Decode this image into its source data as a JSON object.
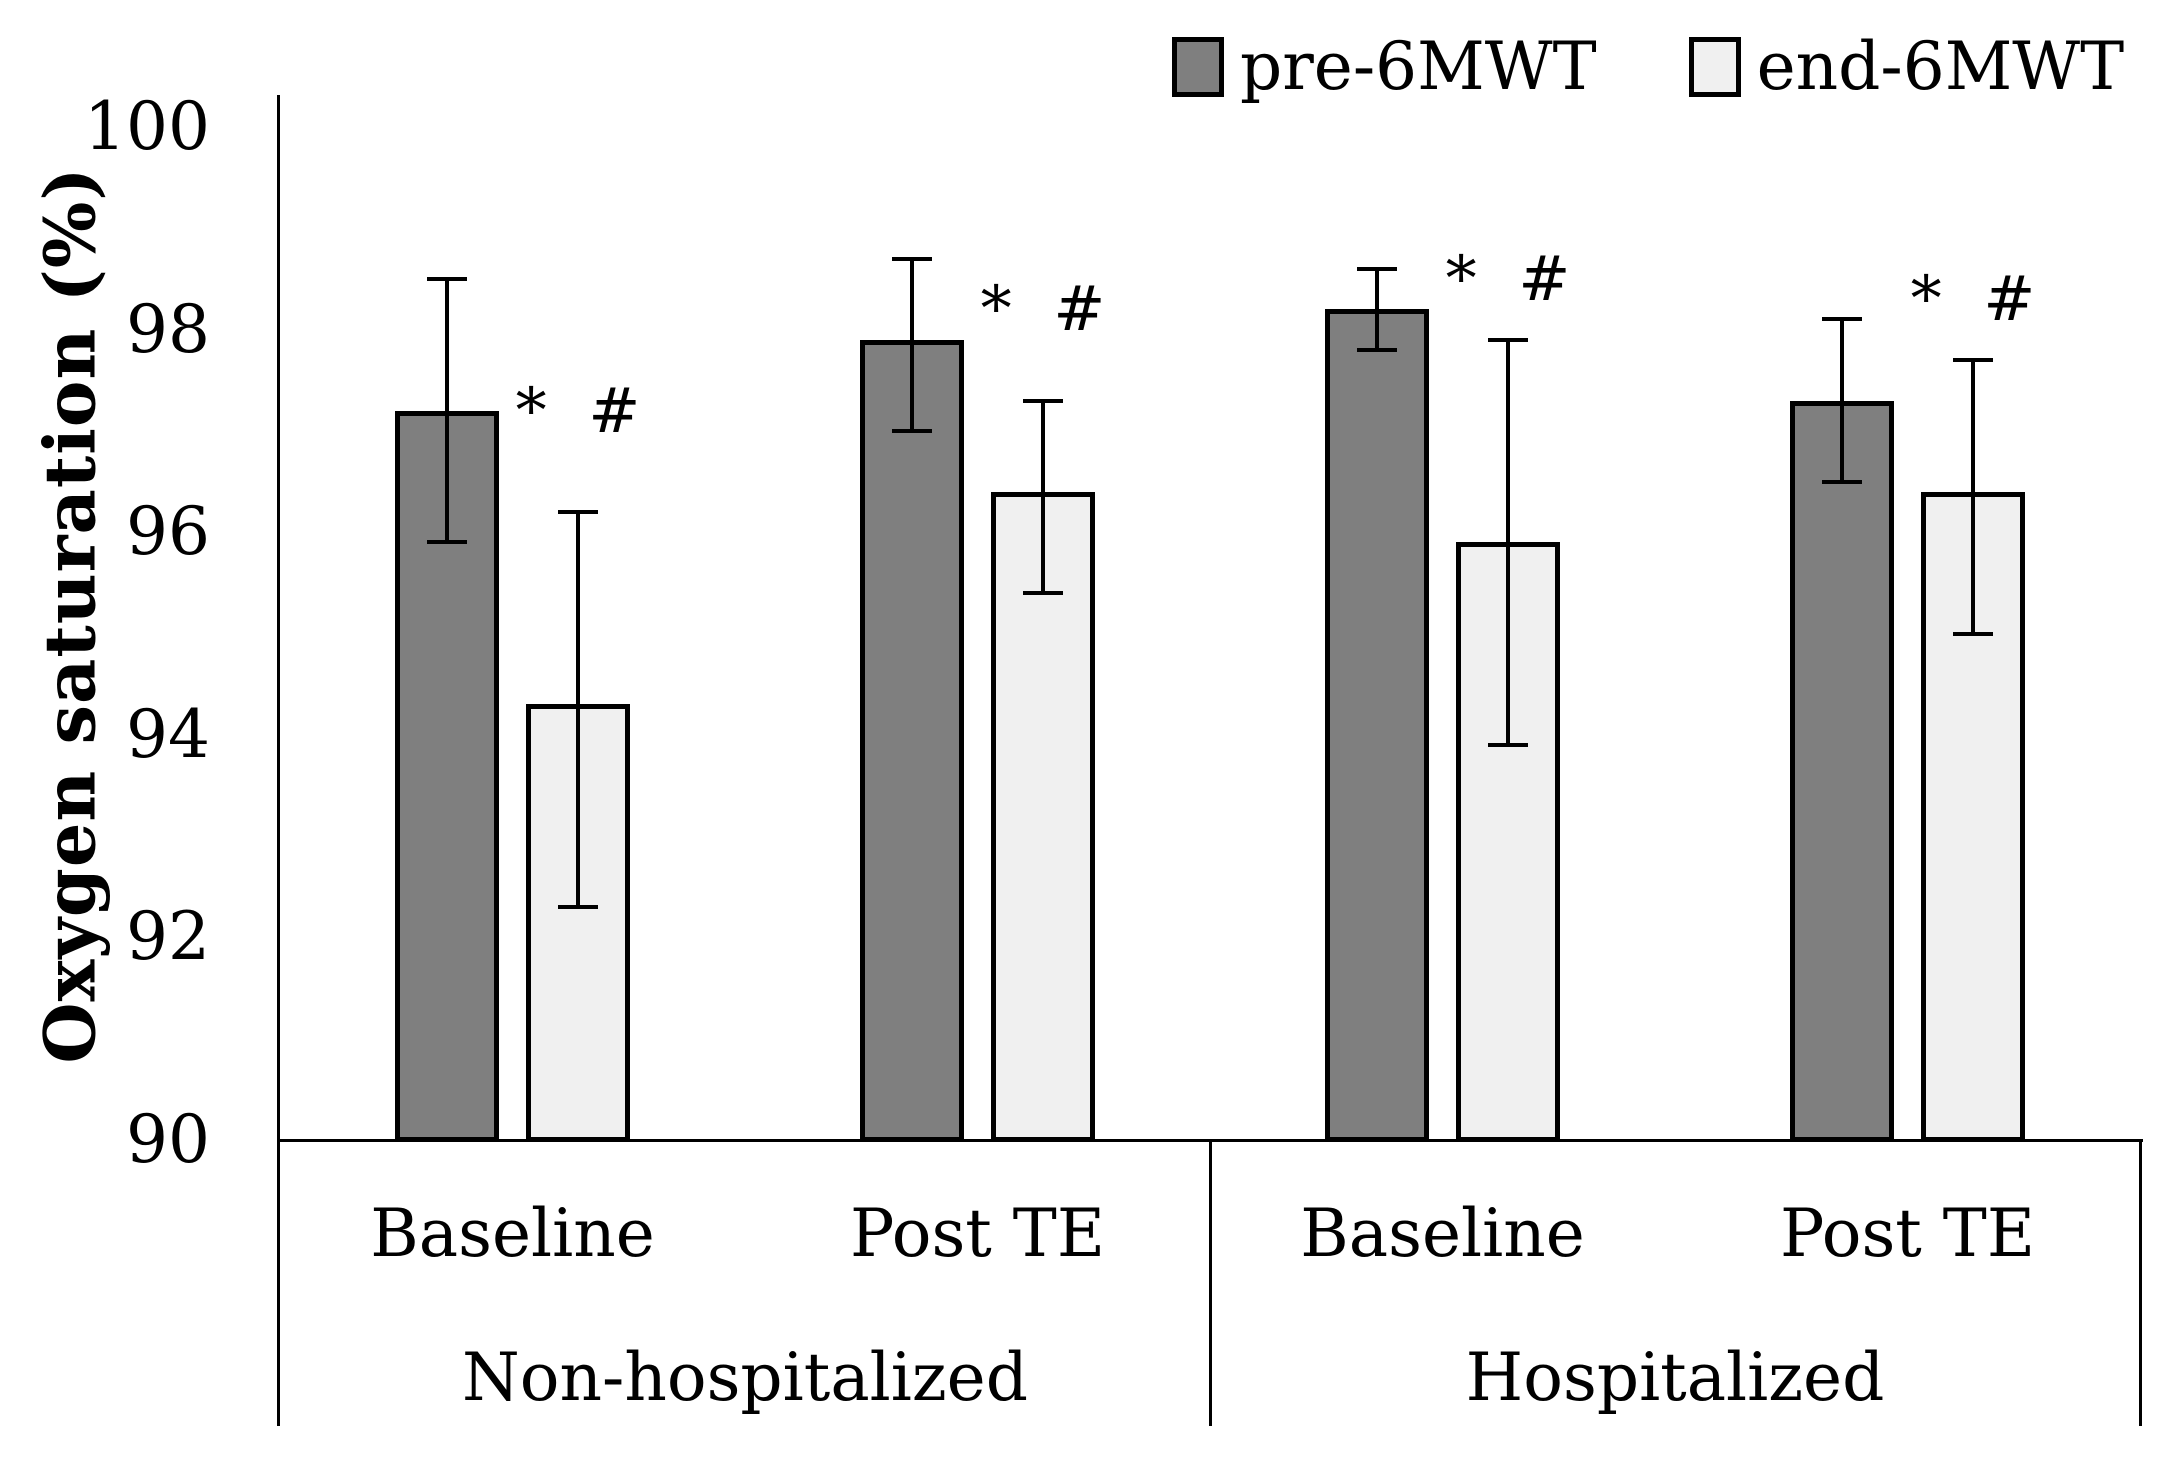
{
  "figure": {
    "background": "#ffffff",
    "axis_color": "#000000"
  },
  "legend": {
    "position": "top",
    "items": [
      {
        "label": "pre-6MWT",
        "color": "#7f7f7f"
      },
      {
        "label": "end-6MWT",
        "color": "#f0f0f0"
      }
    ]
  },
  "chart_data": {
    "type": "bar",
    "title": "",
    "xlabel": "",
    "ylabel": "Oxygen saturation (%)",
    "ylim": [
      90,
      100
    ],
    "yticks": [
      100,
      98,
      96,
      94,
      92,
      90
    ],
    "grid": "off",
    "legend_position": "top-center",
    "annotation_symbols": "* #",
    "series": [
      {
        "name": "pre-6MWT",
        "fill": "#7f7f7f",
        "border": "#000000"
      },
      {
        "name": "end-6MWT",
        "fill": "#f0f0f0",
        "border": "#000000"
      }
    ],
    "groups": [
      {
        "label": "Non-hospitalized",
        "categories": [
          {
            "label": "Baseline",
            "bars": [
              {
                "series": "pre-6MWT",
                "value": 97.2,
                "err_high": 98.5,
                "err_low": 95.9
              },
              {
                "series": "end-6MWT",
                "value": 94.3,
                "err_high": 96.2,
                "err_low": 92.3,
                "annotation": "* #",
                "annotation_y": 97.2
              }
            ]
          },
          {
            "label": "Post TE",
            "bars": [
              {
                "series": "pre-6MWT",
                "value": 97.9,
                "err_high": 98.7,
                "err_low": 97.0
              },
              {
                "series": "end-6MWT",
                "value": 96.4,
                "err_high": 97.3,
                "err_low": 95.4,
                "annotation": "* #",
                "annotation_y": 98.2
              }
            ]
          }
        ]
      },
      {
        "label": "Hospitalized",
        "categories": [
          {
            "label": "Baseline",
            "bars": [
              {
                "series": "pre-6MWT",
                "value": 98.2,
                "err_high": 98.6,
                "err_low": 97.8
              },
              {
                "series": "end-6MWT",
                "value": 95.9,
                "err_high": 97.9,
                "err_low": 93.9,
                "annotation": "* #",
                "annotation_y": 98.5
              }
            ]
          },
          {
            "label": "Post TE",
            "bars": [
              {
                "series": "pre-6MWT",
                "value": 97.3,
                "err_high": 98.1,
                "err_low": 96.5
              },
              {
                "series": "end-6MWT",
                "value": 96.4,
                "err_high": 97.7,
                "err_low": 95.0,
                "annotation": "* #",
                "annotation_y": 98.3
              }
            ]
          }
        ]
      }
    ]
  }
}
